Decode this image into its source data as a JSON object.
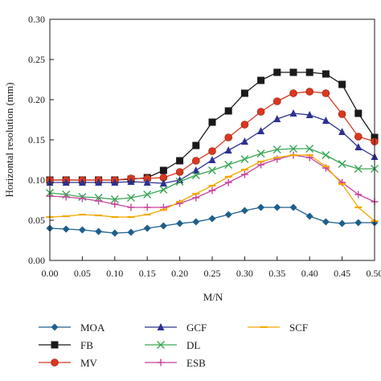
{
  "chart_data": {
    "type": "line",
    "xlabel": "M/N",
    "ylabel": "Horizontal resolution (mm)",
    "xlim": [
      0.0,
      0.5
    ],
    "ylim": [
      0.0,
      0.3
    ],
    "xticks": [
      "0.00",
      "0.05",
      "0.10",
      "0.15",
      "0.20",
      "0.25",
      "0.30",
      "0.35",
      "0.40",
      "0.45",
      "0.50"
    ],
    "yticks": [
      "0.00",
      "0.05",
      "0.10",
      "0.15",
      "0.20",
      "0.25",
      "0.30"
    ],
    "grid": false,
    "legend_position": "bottom",
    "x": [
      0.0,
      0.025,
      0.05,
      0.075,
      0.1,
      0.125,
      0.15,
      0.175,
      0.2,
      0.225,
      0.25,
      0.275,
      0.3,
      0.325,
      0.35,
      0.375,
      0.4,
      0.425,
      0.45,
      0.475,
      0.5
    ],
    "series": [
      {
        "name": "MOA",
        "color": "#1f5f8b",
        "marker": "diamond",
        "values": [
          0.04,
          0.039,
          0.038,
          0.036,
          0.034,
          0.035,
          0.04,
          0.043,
          0.046,
          0.048,
          0.052,
          0.057,
          0.062,
          0.066,
          0.066,
          0.066,
          0.055,
          0.048,
          0.046,
          0.047,
          0.047
        ]
      },
      {
        "name": "FB",
        "color": "#1a1a1a",
        "marker": "square",
        "values": [
          0.1,
          0.1,
          0.1,
          0.1,
          0.1,
          0.101,
          0.103,
          0.112,
          0.124,
          0.143,
          0.172,
          0.186,
          0.208,
          0.224,
          0.234,
          0.234,
          0.234,
          0.232,
          0.219,
          0.183,
          0.153
        ]
      },
      {
        "name": "MV",
        "color": "#d9381e",
        "marker": "circle",
        "values": [
          0.1,
          0.1,
          0.1,
          0.1,
          0.1,
          0.102,
          0.102,
          0.103,
          0.11,
          0.124,
          0.136,
          0.153,
          0.169,
          0.185,
          0.198,
          0.208,
          0.21,
          0.208,
          0.182,
          0.154,
          0.148
        ]
      },
      {
        "name": "GCF",
        "color": "#2e3192",
        "marker": "triangle",
        "values": [
          0.097,
          0.097,
          0.097,
          0.097,
          0.097,
          0.098,
          0.097,
          0.096,
          0.1,
          0.112,
          0.125,
          0.137,
          0.148,
          0.161,
          0.176,
          0.183,
          0.181,
          0.174,
          0.16,
          0.141,
          0.129
        ]
      },
      {
        "name": "DL",
        "color": "#3aa655",
        "marker": "x",
        "values": [
          0.084,
          0.082,
          0.079,
          0.078,
          0.076,
          0.078,
          0.082,
          0.088,
          0.098,
          0.106,
          0.112,
          0.119,
          0.126,
          0.133,
          0.138,
          0.139,
          0.139,
          0.131,
          0.12,
          0.114,
          0.114
        ]
      },
      {
        "name": "ESB",
        "color": "#c8449c",
        "marker": "plus",
        "values": [
          0.08,
          0.079,
          0.077,
          0.074,
          0.07,
          0.066,
          0.066,
          0.066,
          0.071,
          0.078,
          0.087,
          0.097,
          0.107,
          0.119,
          0.126,
          0.131,
          0.128,
          0.115,
          0.097,
          0.082,
          0.073
        ]
      },
      {
        "name": "SCF",
        "color": "#f2a900",
        "marker": "dash",
        "values": [
          0.054,
          0.055,
          0.057,
          0.056,
          0.054,
          0.054,
          0.057,
          0.063,
          0.073,
          0.083,
          0.093,
          0.104,
          0.113,
          0.123,
          0.128,
          0.131,
          0.131,
          0.117,
          0.095,
          0.066,
          0.049
        ]
      }
    ]
  }
}
